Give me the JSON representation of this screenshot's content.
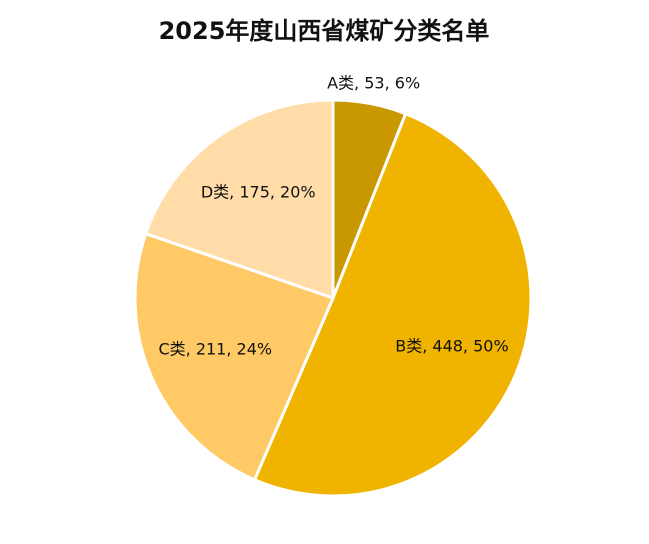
{
  "chart_data": {
    "type": "pie",
    "title": "2025年度山西省煤矿分类名单",
    "categories": [
      "A类",
      "B类",
      "C类",
      "D类"
    ],
    "values": [
      53,
      448,
      211,
      175
    ],
    "value_labels": [
      "A类, 53, 6%",
      "B类, 448, 50%",
      "C类, 211, 24%",
      "D类, 175, 20%"
    ],
    "colors": [
      "#c99700",
      "#f0b400",
      "#ffca66",
      "#ffdca8"
    ]
  }
}
